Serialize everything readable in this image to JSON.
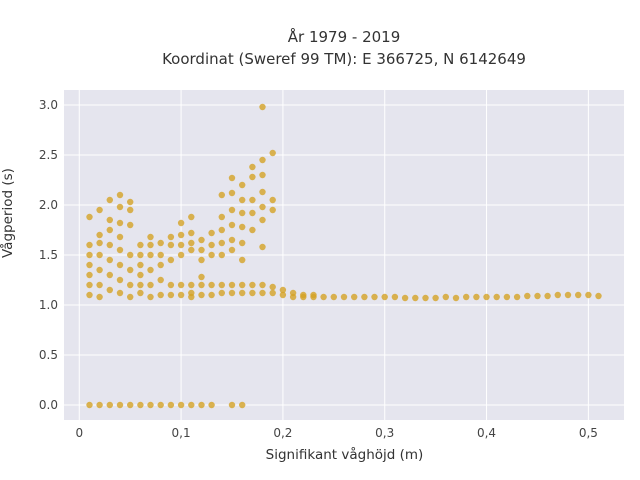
{
  "chart_data": {
    "type": "scatter",
    "title": "År 1979 - 2019",
    "subtitle": "Koordinat (Sweref 99 TM): E 366725, N 6142649",
    "xlabel": "Signifikant våghöjd (m)",
    "ylabel": "Vågperiod (s)",
    "xlim": [
      -0.015,
      0.535
    ],
    "ylim": [
      -0.15,
      3.15
    ],
    "x_ticks": [
      "0",
      "0,1",
      "0,2",
      "0,3",
      "0,4",
      "0,5"
    ],
    "y_ticks": [
      "0.0",
      "0.5",
      "1.0",
      "1.5",
      "2.0",
      "2.5",
      "3.0"
    ],
    "grid": true,
    "background": "#e5e5ee",
    "marker_color": "#d4a326",
    "points": [
      [
        0.01,
        0.0
      ],
      [
        0.02,
        0.0
      ],
      [
        0.03,
        0.0
      ],
      [
        0.04,
        0.0
      ],
      [
        0.05,
        0.0
      ],
      [
        0.06,
        0.0
      ],
      [
        0.07,
        0.0
      ],
      [
        0.08,
        0.0
      ],
      [
        0.09,
        0.0
      ],
      [
        0.1,
        0.0
      ],
      [
        0.11,
        0.0
      ],
      [
        0.12,
        0.0
      ],
      [
        0.13,
        0.0
      ],
      [
        0.15,
        0.0
      ],
      [
        0.16,
        0.0
      ],
      [
        0.01,
        1.88
      ],
      [
        0.01,
        1.6
      ],
      [
        0.01,
        1.5
      ],
      [
        0.01,
        1.4
      ],
      [
        0.01,
        1.3
      ],
      [
        0.01,
        1.2
      ],
      [
        0.01,
        1.1
      ],
      [
        0.02,
        1.95
      ],
      [
        0.02,
        1.7
      ],
      [
        0.02,
        1.62
      ],
      [
        0.02,
        1.5
      ],
      [
        0.02,
        1.35
      ],
      [
        0.02,
        1.2
      ],
      [
        0.02,
        1.08
      ],
      [
        0.03,
        2.05
      ],
      [
        0.03,
        1.85
      ],
      [
        0.03,
        1.75
      ],
      [
        0.03,
        1.6
      ],
      [
        0.03,
        1.45
      ],
      [
        0.03,
        1.3
      ],
      [
        0.03,
        1.15
      ],
      [
        0.04,
        2.1
      ],
      [
        0.04,
        1.98
      ],
      [
        0.04,
        1.82
      ],
      [
        0.04,
        1.68
      ],
      [
        0.04,
        1.55
      ],
      [
        0.04,
        1.4
      ],
      [
        0.04,
        1.25
      ],
      [
        0.04,
        1.12
      ],
      [
        0.05,
        2.03
      ],
      [
        0.05,
        1.95
      ],
      [
        0.05,
        1.8
      ],
      [
        0.05,
        1.5
      ],
      [
        0.05,
        1.35
      ],
      [
        0.05,
        1.2
      ],
      [
        0.05,
        1.08
      ],
      [
        0.06,
        1.6
      ],
      [
        0.06,
        1.5
      ],
      [
        0.06,
        1.4
      ],
      [
        0.06,
        1.3
      ],
      [
        0.06,
        1.2
      ],
      [
        0.06,
        1.12
      ],
      [
        0.07,
        1.68
      ],
      [
        0.07,
        1.6
      ],
      [
        0.07,
        1.5
      ],
      [
        0.07,
        1.35
      ],
      [
        0.07,
        1.2
      ],
      [
        0.07,
        1.08
      ],
      [
        0.08,
        1.62
      ],
      [
        0.08,
        1.5
      ],
      [
        0.08,
        1.4
      ],
      [
        0.08,
        1.25
      ],
      [
        0.08,
        1.1
      ],
      [
        0.09,
        1.68
      ],
      [
        0.09,
        1.6
      ],
      [
        0.09,
        1.45
      ],
      [
        0.09,
        1.2
      ],
      [
        0.09,
        1.1
      ],
      [
        0.1,
        1.82
      ],
      [
        0.1,
        1.7
      ],
      [
        0.1,
        1.6
      ],
      [
        0.1,
        1.5
      ],
      [
        0.1,
        1.2
      ],
      [
        0.1,
        1.1
      ],
      [
        0.11,
        1.88
      ],
      [
        0.11,
        1.72
      ],
      [
        0.11,
        1.62
      ],
      [
        0.11,
        1.55
      ],
      [
        0.11,
        1.2
      ],
      [
        0.11,
        1.12
      ],
      [
        0.11,
        1.08
      ],
      [
        0.12,
        1.65
      ],
      [
        0.12,
        1.55
      ],
      [
        0.12,
        1.45
      ],
      [
        0.12,
        1.28
      ],
      [
        0.12,
        1.2
      ],
      [
        0.12,
        1.1
      ],
      [
        0.13,
        1.72
      ],
      [
        0.13,
        1.6
      ],
      [
        0.13,
        1.5
      ],
      [
        0.13,
        1.2
      ],
      [
        0.13,
        1.1
      ],
      [
        0.14,
        2.1
      ],
      [
        0.14,
        1.88
      ],
      [
        0.14,
        1.75
      ],
      [
        0.14,
        1.62
      ],
      [
        0.14,
        1.5
      ],
      [
        0.14,
        1.2
      ],
      [
        0.14,
        1.12
      ],
      [
        0.15,
        2.27
      ],
      [
        0.15,
        2.12
      ],
      [
        0.15,
        1.95
      ],
      [
        0.15,
        1.8
      ],
      [
        0.15,
        1.65
      ],
      [
        0.15,
        1.55
      ],
      [
        0.15,
        1.2
      ],
      [
        0.15,
        1.12
      ],
      [
        0.16,
        2.2
      ],
      [
        0.16,
        2.05
      ],
      [
        0.16,
        1.92
      ],
      [
        0.16,
        1.78
      ],
      [
        0.16,
        1.62
      ],
      [
        0.16,
        1.45
      ],
      [
        0.16,
        1.2
      ],
      [
        0.16,
        1.12
      ],
      [
        0.17,
        2.38
      ],
      [
        0.17,
        2.28
      ],
      [
        0.17,
        2.05
      ],
      [
        0.17,
        1.92
      ],
      [
        0.17,
        1.75
      ],
      [
        0.17,
        1.2
      ],
      [
        0.17,
        1.12
      ],
      [
        0.18,
        2.98
      ],
      [
        0.18,
        2.45
      ],
      [
        0.18,
        2.3
      ],
      [
        0.18,
        2.13
      ],
      [
        0.18,
        1.98
      ],
      [
        0.18,
        1.85
      ],
      [
        0.18,
        1.58
      ],
      [
        0.18,
        1.2
      ],
      [
        0.18,
        1.12
      ],
      [
        0.19,
        2.52
      ],
      [
        0.19,
        2.05
      ],
      [
        0.19,
        1.95
      ],
      [
        0.19,
        1.18
      ],
      [
        0.19,
        1.12
      ],
      [
        0.2,
        1.15
      ],
      [
        0.2,
        1.1
      ],
      [
        0.21,
        1.12
      ],
      [
        0.21,
        1.08
      ],
      [
        0.22,
        1.1
      ],
      [
        0.22,
        1.08
      ],
      [
        0.23,
        1.1
      ],
      [
        0.23,
        1.08
      ],
      [
        0.24,
        1.08
      ],
      [
        0.25,
        1.08
      ],
      [
        0.26,
        1.08
      ],
      [
        0.27,
        1.08
      ],
      [
        0.28,
        1.08
      ],
      [
        0.29,
        1.08
      ],
      [
        0.3,
        1.08
      ],
      [
        0.31,
        1.08
      ],
      [
        0.32,
        1.07
      ],
      [
        0.33,
        1.07
      ],
      [
        0.34,
        1.07
      ],
      [
        0.35,
        1.07
      ],
      [
        0.36,
        1.08
      ],
      [
        0.37,
        1.07
      ],
      [
        0.38,
        1.08
      ],
      [
        0.39,
        1.08
      ],
      [
        0.4,
        1.08
      ],
      [
        0.41,
        1.08
      ],
      [
        0.42,
        1.08
      ],
      [
        0.43,
        1.08
      ],
      [
        0.44,
        1.09
      ],
      [
        0.45,
        1.09
      ],
      [
        0.46,
        1.09
      ],
      [
        0.47,
        1.1
      ],
      [
        0.48,
        1.1
      ],
      [
        0.49,
        1.1
      ],
      [
        0.5,
        1.1
      ],
      [
        0.51,
        1.09
      ]
    ]
  }
}
